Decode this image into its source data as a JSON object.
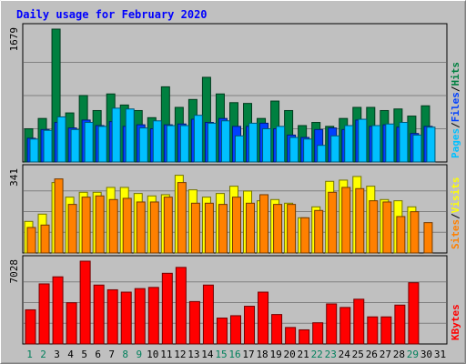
{
  "chart_data": {
    "type": "bar",
    "title": "Daily usage for February 2020",
    "categories": [
      "1",
      "2",
      "3",
      "4",
      "5",
      "6",
      "7",
      "8",
      "9",
      "10",
      "11",
      "12",
      "13",
      "14",
      "15",
      "16",
      "17",
      "18",
      "19",
      "20",
      "21",
      "22",
      "23",
      "24",
      "25",
      "26",
      "27",
      "28",
      "29",
      "30",
      "31"
    ],
    "weekend_days": [
      "1",
      "2",
      "8",
      "9",
      "15",
      "16",
      "22",
      "23",
      "29"
    ],
    "panels": [
      {
        "name": "top",
        "ymax_label": "1679",
        "ymax": 1679,
        "right_labels": [
          "Pages",
          "/",
          "Files",
          "/",
          "Hits"
        ],
        "right_label_colors": [
          "#00C0FF",
          "#000000",
          "#0040FF",
          "#000000",
          "#008040"
        ],
        "series": [
          {
            "name": "Hits",
            "color": "#008040",
            "values": [
              420,
              550,
              1679,
              620,
              840,
              650,
              860,
              720,
              650,
              560,
              950,
              690,
              790,
              1070,
              860,
              750,
              740,
              550,
              770,
              650,
              460,
              500,
              450,
              550,
              690,
              690,
              650,
              670,
              580,
              710,
              0
            ]
          },
          {
            "name": "Files",
            "color": "#0040FF",
            "values": [
              300,
              410,
              500,
              430,
              530,
              460,
              510,
              450,
              470,
              420,
              470,
              480,
              540,
              500,
              550,
              450,
              450,
              490,
              420,
              340,
              310,
              410,
              430,
              410,
              530,
              450,
              470,
              440,
              360,
              450,
              0
            ]
          },
          {
            "name": "Pages",
            "color": "#00C0FF",
            "values": [
              290,
              400,
              570,
              410,
              500,
              450,
              680,
              670,
              430,
              520,
              460,
              460,
              590,
              490,
              520,
              330,
              490,
              420,
              450,
              310,
              290,
              210,
              330,
              460,
              540,
              460,
              480,
              500,
              340,
              440,
              0
            ]
          }
        ]
      },
      {
        "name": "middle",
        "ymax_label": "341",
        "ymax": 341,
        "right_labels": [
          "Sites",
          "/",
          "Visits"
        ],
        "right_label_colors": [
          "#FF8000",
          "#000000",
          "#FFFF00"
        ],
        "series": [
          {
            "name": "Visits",
            "color": "#FFFF00",
            "values": [
              130,
              160,
              290,
              230,
              250,
              250,
              270,
              270,
              245,
              235,
              240,
              320,
              260,
              230,
              245,
              275,
              255,
              215,
              220,
              205,
              145,
              190,
              295,
              300,
              315,
              275,
              220,
              215,
              190,
              0,
              0
            ]
          },
          {
            "name": "Sites",
            "color": "#FF8000",
            "values": [
              105,
              115,
              305,
              200,
              230,
              235,
              220,
              225,
              210,
              210,
              230,
              290,
              205,
              205,
              200,
              230,
              205,
              240,
              200,
              200,
              145,
              175,
              250,
              270,
              265,
              215,
              210,
              150,
              170,
              125,
              0
            ]
          }
        ]
      },
      {
        "name": "bottom",
        "ymax_label": "7028",
        "ymax": 7028,
        "right_labels": [
          "KBytes"
        ],
        "right_label_colors": [
          "#FF0000"
        ],
        "series": [
          {
            "name": "KBytes",
            "color": "#FF0000",
            "values": [
              2900,
              5100,
              5700,
              3500,
              7028,
              5000,
              4600,
              4400,
              4700,
              4800,
              6000,
              6500,
              3600,
              5000,
              2200,
              2400,
              3200,
              4400,
              2500,
              1400,
              1200,
              1800,
              3400,
              3100,
              3800,
              2300,
              2300,
              3300,
              5200,
              0,
              0
            ]
          }
        ]
      }
    ]
  }
}
